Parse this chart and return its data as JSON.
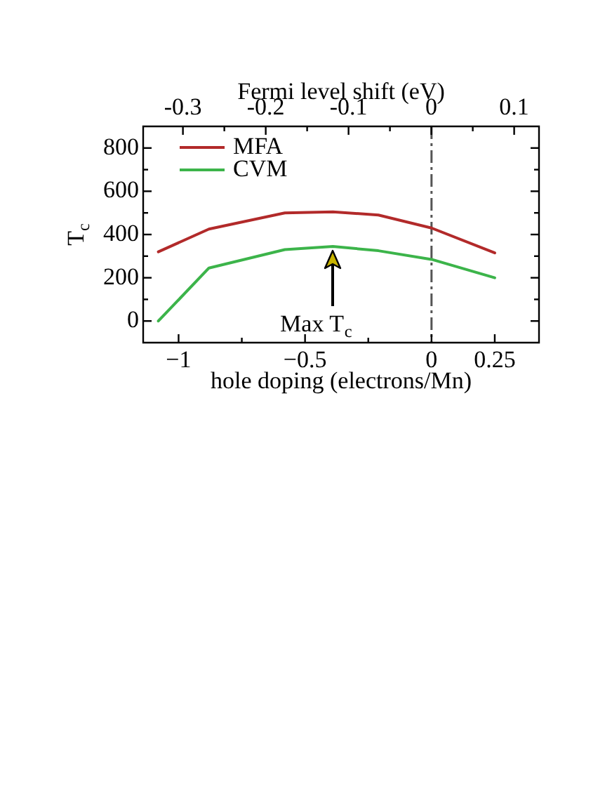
{
  "chart_data": {
    "type": "line",
    "xlabel": "hole doping (electrons/Mn)",
    "x2label": "Fermi level shift (eV)",
    "ylabel": "T$_{c}$",
    "x": [
      -1.08,
      -0.88,
      -0.58,
      -0.39,
      -0.21,
      0,
      0.25
    ],
    "series": [
      {
        "name": "MFA",
        "color": "#b22a2a",
        "values": [
          320,
          425,
          500,
          505,
          490,
          430,
          315
        ]
      },
      {
        "name": "CVM",
        "color": "#3cb44a",
        "values": [
          0,
          245,
          330,
          345,
          325,
          285,
          200
        ]
      }
    ],
    "xlim": [
      -1.14,
      0.425
    ],
    "xticks": [
      {
        "value": -1,
        "label": "−1"
      },
      {
        "value": -0.75,
        "label": null
      },
      {
        "value": -0.5,
        "label": "−0.5"
      },
      {
        "value": -0.25,
        "label": null
      },
      0,
      0.25
    ],
    "x2lim": [
      -0.348,
      0.13
    ],
    "x2ticks": [
      -0.3,
      {
        "value": -0.25,
        "label": null
      },
      -0.2,
      {
        "value": -0.15,
        "label": null
      },
      -0.1,
      {
        "value": -0.05,
        "label": null
      },
      0,
      {
        "value": 0.05,
        "label": null
      },
      0.1
    ],
    "ylim": [
      -100,
      900
    ],
    "yticks": [
      0,
      {
        "value": 100,
        "label": null
      },
      200,
      {
        "value": 300,
        "label": null
      },
      400,
      {
        "value": 500,
        "label": null
      },
      600,
      {
        "value": 700,
        "label": null
      },
      800
    ],
    "ref_lines": [
      {
        "axis": "x",
        "value": 0,
        "color": "#555555",
        "line_style": "dashed"
      }
    ],
    "annotations": [
      {
        "text": "Max T$_{c}$",
        "x": -0.39,
        "y": 345
      }
    ],
    "legend": "top left",
    "marker": "none"
  }
}
